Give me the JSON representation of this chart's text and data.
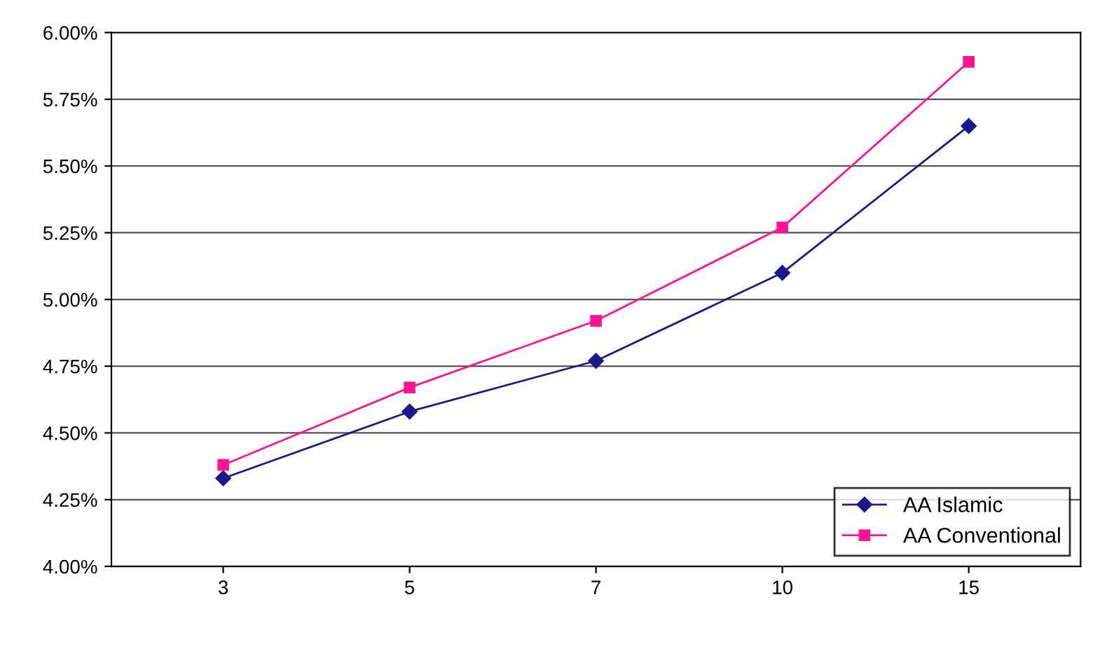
{
  "chart_data": {
    "type": "line",
    "categories": [
      "3",
      "5",
      "7",
      "10",
      "15"
    ],
    "series": [
      {
        "name": "AA Islamic",
        "color": "#1a1a8c",
        "marker": "diamond",
        "values": [
          4.33,
          4.58,
          4.77,
          5.1,
          5.65
        ]
      },
      {
        "name": "AA Conventional",
        "color": "#ff1493",
        "marker": "square",
        "values": [
          4.38,
          4.67,
          4.92,
          5.27,
          5.89
        ]
      }
    ],
    "ylim": [
      4.0,
      6.0
    ],
    "yticks": [
      {
        "value": 4.0,
        "label": "4.00%"
      },
      {
        "value": 4.25,
        "label": "4.25%"
      },
      {
        "value": 4.5,
        "label": "4.50%"
      },
      {
        "value": 4.75,
        "label": "4.75%"
      },
      {
        "value": 5.0,
        "label": "5.00%"
      },
      {
        "value": 5.25,
        "label": "5.25%"
      },
      {
        "value": 5.5,
        "label": "5.50%"
      },
      {
        "value": 5.75,
        "label": "5.75%"
      },
      {
        "value": 6.0,
        "label": "6.00%"
      }
    ],
    "grid": "y",
    "legend": "bottom right",
    "line_style": "solid"
  }
}
